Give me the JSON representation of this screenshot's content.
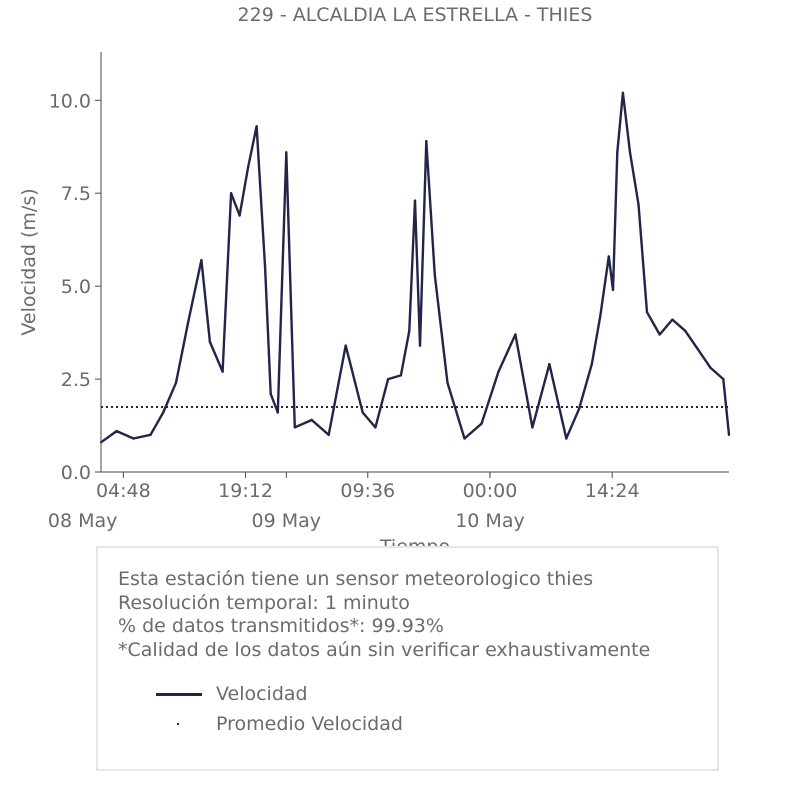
{
  "chart_data": {
    "type": "line",
    "title": "229 - ALCALDIA LA ESTRELLA - THIES",
    "xlabel": "Tiempo",
    "ylabel": "Velocidad (m/s)",
    "ylim": [
      0,
      11.3
    ],
    "xlim": [
      "2024-05-08 02:10",
      "2024-05-11 04:10"
    ],
    "y_ticks": [
      "0.0",
      "2.5",
      "5.0",
      "7.5",
      "10.0"
    ],
    "x_ticks_time": [
      {
        "t": "2024-05-08 04:48",
        "label": "04:48"
      },
      {
        "t": "2024-05-08 19:12",
        "label": "19:12"
      },
      {
        "t": "2024-05-09 09:36",
        "label": "09:36"
      },
      {
        "t": "2024-05-10 00:00",
        "label": "00:00"
      },
      {
        "t": "2024-05-10 14:24",
        "label": "14:24"
      }
    ],
    "x_ticks_date": [
      {
        "t": "2024-05-08 00:00",
        "label": "08 May"
      },
      {
        "t": "2024-05-09 00:00",
        "label": "09 May"
      },
      {
        "t": "2024-05-10 00:00",
        "label": "10 May"
      }
    ],
    "grid": false,
    "series": [
      {
        "name": "Velocidad",
        "color": "#23244a",
        "style": "solid",
        "x": [
          "2024-05-08 02:10",
          "2024-05-08 04:00",
          "2024-05-08 06:00",
          "2024-05-08 08:00",
          "2024-05-08 09:30",
          "2024-05-08 11:00",
          "2024-05-08 12:30",
          "2024-05-08 14:00",
          "2024-05-08 15:00",
          "2024-05-08 16:30",
          "2024-05-08 17:30",
          "2024-05-08 18:30",
          "2024-05-08 19:30",
          "2024-05-08 20:30",
          "2024-05-08 21:30",
          "2024-05-08 22:10",
          "2024-05-08 23:00",
          "2024-05-09 00:00",
          "2024-05-09 01:00",
          "2024-05-09 03:00",
          "2024-05-09 05:00",
          "2024-05-09 07:00",
          "2024-05-09 09:00",
          "2024-05-09 10:30",
          "2024-05-09 12:00",
          "2024-05-09 13:30",
          "2024-05-09 14:30",
          "2024-05-09 15:10",
          "2024-05-09 15:45",
          "2024-05-09 16:30",
          "2024-05-09 17:30",
          "2024-05-09 19:00",
          "2024-05-09 21:00",
          "2024-05-09 23:00",
          "2024-05-10 01:00",
          "2024-05-10 03:00",
          "2024-05-10 05:00",
          "2024-05-10 07:00",
          "2024-05-10 09:00",
          "2024-05-10 10:30",
          "2024-05-10 12:00",
          "2024-05-10 13:00",
          "2024-05-10 14:00",
          "2024-05-10 14:30",
          "2024-05-10 15:00",
          "2024-05-10 15:40",
          "2024-05-10 16:30",
          "2024-05-10 17:30",
          "2024-05-10 18:30",
          "2024-05-10 20:00",
          "2024-05-10 21:30",
          "2024-05-10 23:00",
          "2024-05-11 00:30",
          "2024-05-11 02:00",
          "2024-05-11 03:30",
          "2024-05-11 04:10"
        ],
        "values": [
          0.8,
          1.1,
          0.9,
          1.0,
          1.6,
          2.4,
          4.1,
          5.7,
          3.5,
          2.7,
          7.5,
          6.9,
          8.2,
          9.3,
          5.5,
          2.1,
          1.6,
          8.6,
          1.2,
          1.4,
          1.0,
          3.4,
          1.6,
          1.2,
          2.5,
          2.6,
          3.8,
          7.3,
          3.4,
          8.9,
          5.3,
          2.4,
          0.9,
          1.3,
          2.7,
          3.7,
          1.2,
          2.9,
          0.9,
          1.7,
          2.9,
          4.2,
          5.8,
          4.9,
          8.6,
          10.2,
          8.6,
          7.2,
          4.3,
          3.7,
          4.1,
          3.8,
          3.3,
          2.8,
          2.5,
          1.0
        ]
      },
      {
        "name": "Promedio Velocidad",
        "color": "#23244a",
        "style": "dotted",
        "value": 1.75
      }
    ]
  },
  "info": {
    "lines": [
      "Esta estación tiene un sensor meteorologico thies",
      "Resolución temporal: 1 minuto",
      "% de datos transmitidos*: 99.93%",
      "*Calidad de los datos aún sin verificar exhaustivamente"
    ]
  },
  "legend": [
    {
      "label": "Velocidad"
    },
    {
      "label": "Promedio Velocidad"
    }
  ]
}
